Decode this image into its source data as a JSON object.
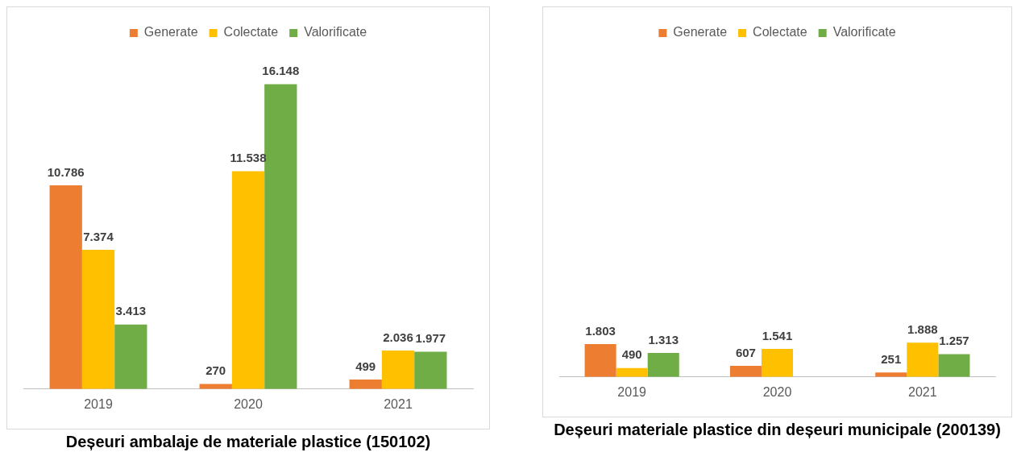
{
  "chart_data": [
    {
      "type": "bar",
      "title": "Deșeuri ambalaje de materiale plastice (150102)",
      "categories": [
        "2019",
        "2020",
        "2021"
      ],
      "legend": "top",
      "grid": false,
      "series": [
        {
          "name": "Generate",
          "color": "#ed7d31",
          "values": [
            10786,
            270,
            499
          ],
          "value_labels": [
            "10.786",
            "270",
            "499"
          ]
        },
        {
          "name": "Colectate",
          "color": "#ffc000",
          "values": [
            7374,
            11538,
            2036
          ],
          "value_labels": [
            "7.374",
            "11.538",
            "2.036"
          ]
        },
        {
          "name": "Valorificate",
          "color": "#70ad47",
          "values": [
            3413,
            16148,
            1977
          ],
          "value_labels": [
            "3.413",
            "16.148",
            "1.977"
          ]
        }
      ]
    },
    {
      "type": "bar",
      "title": "Deșeuri materiale plastice din deșeuri municipale (200139)",
      "categories": [
        "2019",
        "2020",
        "2021"
      ],
      "legend": "top",
      "grid": false,
      "series": [
        {
          "name": "Generate",
          "color": "#ed7d31",
          "values": [
            1803,
            607,
            251
          ],
          "value_labels": [
            "1.803",
            "607",
            "251"
          ]
        },
        {
          "name": "Colectate",
          "color": "#ffc000",
          "values": [
            490,
            1541,
            1888
          ],
          "value_labels": [
            "490",
            "1.541",
            "1.888"
          ]
        },
        {
          "name": "Valorificate",
          "color": "#70ad47",
          "values": [
            1313,
            null,
            1257
          ],
          "value_labels": [
            "1.313",
            null,
            "1.257"
          ]
        }
      ]
    }
  ]
}
